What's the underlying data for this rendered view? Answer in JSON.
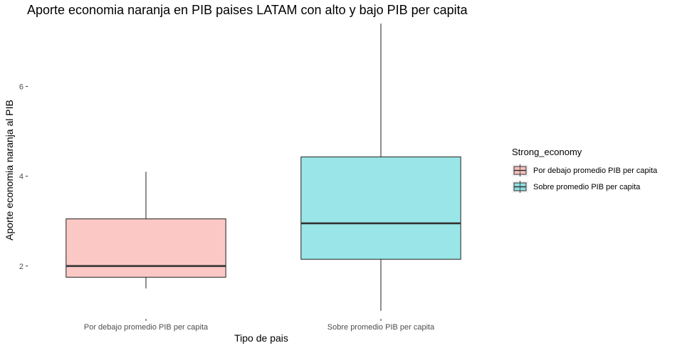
{
  "chart_data": {
    "type": "boxplot",
    "title": "Aporte economia naranja en PIB paises LATAM con alto y bajo PIB per capita",
    "xlabel": "Tipo de pais",
    "ylabel": "Aporte economia naranja al PIB",
    "ylim": [
      0.95,
      7.45
    ],
    "yticks": [
      2,
      4,
      6
    ],
    "grid": false,
    "legend": {
      "title": "Strong_economy",
      "position": "right"
    },
    "categories": [
      "Por debajo promedio PIB per capita",
      "Sobre promedio PIB per capita"
    ],
    "series": [
      {
        "category": "Por debajo promedio PIB per capita",
        "min": 1.5,
        "q1": 1.75,
        "median": 2.0,
        "q3": 3.05,
        "max": 4.1,
        "color": "#F8766D"
      },
      {
        "category": "Sobre promedio PIB per capita",
        "min": 1.0,
        "q1": 2.15,
        "median": 2.95,
        "q3": 4.43,
        "max": 7.4,
        "color": "#00BFC4"
      }
    ]
  }
}
